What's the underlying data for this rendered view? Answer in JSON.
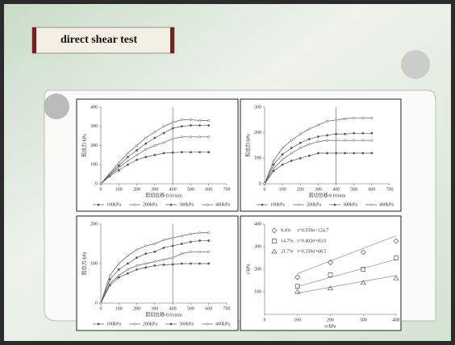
{
  "slide_title": "direct shear test",
  "chart_data": [
    {
      "type": "line",
      "xlabel": "剪切位移/0.01mm",
      "ylabel": "剪应力/kPa",
      "xlim": [
        0,
        700
      ],
      "xticks": [
        0,
        100,
        200,
        300,
        400,
        500,
        600,
        700
      ],
      "ylim": [
        0,
        400
      ],
      "yticks": [
        0,
        100,
        200,
        300,
        400
      ],
      "vline": 400,
      "x": [
        0,
        50,
        100,
        150,
        200,
        250,
        300,
        350,
        400,
        450,
        500,
        550,
        600
      ],
      "series": [
        {
          "name": "100kPa",
          "color": "#555",
          "values": [
            0,
            40,
            70,
            100,
            125,
            140,
            150,
            160,
            163,
            165,
            165,
            165,
            165
          ]
        },
        {
          "name": "200kPa",
          "color": "#555",
          "values": [
            0,
            45,
            85,
            120,
            150,
            180,
            200,
            215,
            235,
            245,
            245,
            245,
            245
          ]
        },
        {
          "name": "300kPa",
          "color": "#555",
          "values": [
            0,
            50,
            95,
            140,
            175,
            210,
            240,
            265,
            290,
            300,
            305,
            305,
            305
          ]
        },
        {
          "name": "400kPa",
          "color": "#555",
          "values": [
            0,
            55,
            110,
            160,
            200,
            240,
            270,
            300,
            320,
            335,
            335,
            330,
            330
          ]
        }
      ]
    },
    {
      "type": "line",
      "xlabel": "剪切位移/0.01mm",
      "ylabel": "剪应力/kPa",
      "xlim": [
        0,
        700
      ],
      "xticks": [
        0,
        100,
        200,
        300,
        400,
        500,
        600,
        700
      ],
      "ylim": [
        0,
        300
      ],
      "yticks": [
        0,
        100,
        200,
        300
      ],
      "vline": 400,
      "x": [
        0,
        50,
        100,
        150,
        200,
        250,
        300,
        350,
        400,
        450,
        500,
        550,
        600
      ],
      "series": [
        {
          "name": "100kPa",
          "color": "#555",
          "values": [
            0,
            50,
            75,
            90,
            100,
            110,
            120,
            120,
            120,
            120,
            120,
            120,
            120
          ]
        },
        {
          "name": "200kPa",
          "color": "#555",
          "values": [
            0,
            60,
            95,
            120,
            140,
            155,
            165,
            170,
            170,
            170,
            170,
            170,
            170
          ]
        },
        {
          "name": "300kPa",
          "color": "#555",
          "values": [
            0,
            75,
            115,
            140,
            160,
            175,
            185,
            190,
            195,
            195,
            198,
            198,
            198
          ]
        },
        {
          "name": "400kPa",
          "color": "#555",
          "values": [
            0,
            90,
            140,
            170,
            195,
            215,
            230,
            245,
            250,
            255,
            258,
            258,
            258
          ]
        }
      ]
    },
    {
      "type": "line",
      "xlabel": "剪切位移/0.01mm",
      "ylabel": "剪应力/kPa",
      "xlim": [
        0,
        700
      ],
      "xticks": [
        0,
        100,
        200,
        300,
        400,
        500,
        600,
        700
      ],
      "ylim": [
        0,
        200
      ],
      "yticks": [
        0,
        100,
        200
      ],
      "vline": 400,
      "x": [
        0,
        50,
        100,
        150,
        200,
        250,
        300,
        350,
        400,
        450,
        500,
        550,
        600
      ],
      "series": [
        {
          "name": "100kPa",
          "color": "#555",
          "values": [
            0,
            45,
            65,
            75,
            85,
            90,
            95,
            97,
            98,
            100,
            100,
            100,
            100
          ]
        },
        {
          "name": "200kPa",
          "color": "#555",
          "values": [
            0,
            50,
            70,
            85,
            95,
            100,
            105,
            110,
            115,
            125,
            130,
            130,
            130
          ]
        },
        {
          "name": "300kPa",
          "color": "#555",
          "values": [
            0,
            60,
            85,
            100,
            115,
            125,
            130,
            140,
            145,
            150,
            155,
            158,
            158
          ]
        },
        {
          "name": "400kPa",
          "color": "#555",
          "values": [
            0,
            70,
            100,
            120,
            135,
            145,
            150,
            160,
            165,
            170,
            175,
            178,
            178
          ]
        }
      ]
    },
    {
      "type": "scatter",
      "xlabel": "σ/kPa",
      "ylabel": "τ/kPa",
      "xlim": [
        0,
        400
      ],
      "xticks": [
        0,
        100,
        200,
        300,
        400
      ],
      "ylim": [
        0,
        400
      ],
      "yticks": [
        100,
        200,
        300,
        400
      ],
      "x": [
        100,
        200,
        300,
        400
      ],
      "series": [
        {
          "name": "9.4%",
          "equation": "τ=0.559σ+124.7",
          "slope": 0.559,
          "intercept": 124.7,
          "marker": "diamond",
          "color": "#555",
          "values": [
            165,
            230,
            275,
            325
          ]
        },
        {
          "name": "14.7%",
          "equation": "τ=0.402σ+83.0",
          "slope": 0.402,
          "intercept": 83.0,
          "marker": "square",
          "color": "#555",
          "values": [
            125,
            175,
            200,
            250
          ]
        },
        {
          "name": "21.7%",
          "equation": "τ=0.259σ+68.5",
          "slope": 0.259,
          "intercept": 68.5,
          "marker": "triangle",
          "color": "#555",
          "values": [
            100,
            115,
            140,
            160
          ]
        }
      ]
    }
  ]
}
